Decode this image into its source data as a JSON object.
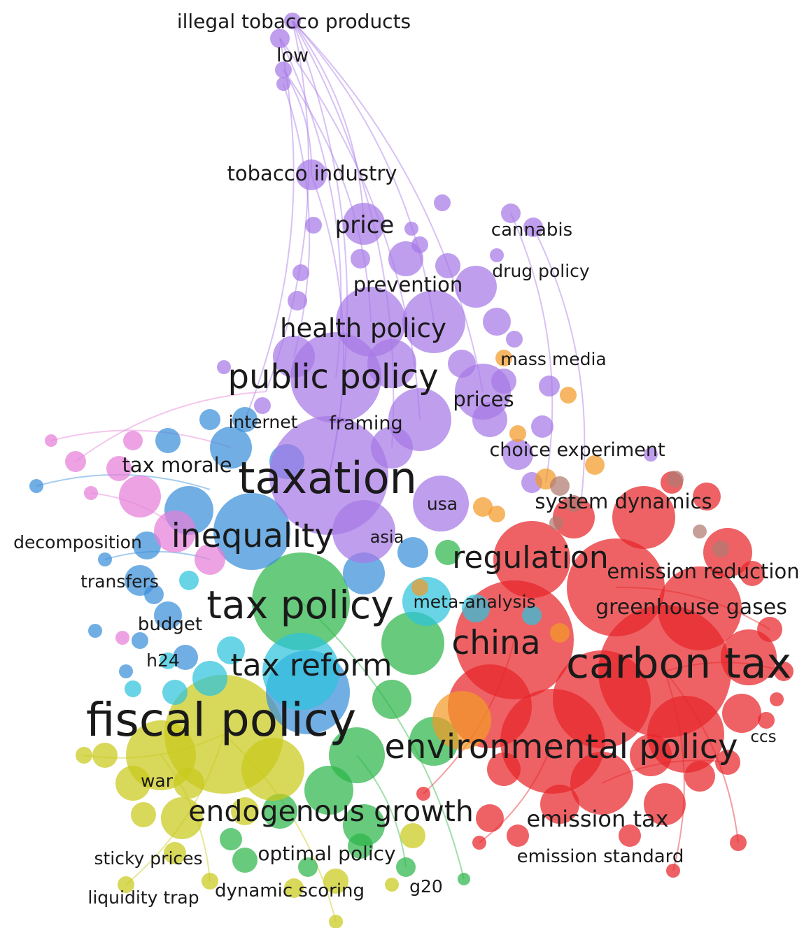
{
  "map": {
    "clusters": {
      "purple": "#a678e6",
      "red": "#e8252a",
      "green": "#2db54a",
      "yellow": "#c9c91c",
      "blue": "#3a8fd9",
      "cyan": "#2ec4dc",
      "pink": "#e680d8",
      "orange": "#f29a28",
      "brown": "#b07a70"
    },
    "labels": [
      {
        "text": "illegal tobacco products",
        "cluster": "purple"
      },
      {
        "text": "low",
        "cluster": "purple"
      },
      {
        "text": "tobacco industry",
        "cluster": "purple"
      },
      {
        "text": "price",
        "cluster": "purple"
      },
      {
        "text": "cannabis",
        "cluster": "purple"
      },
      {
        "text": "drug policy",
        "cluster": "purple"
      },
      {
        "text": "prevention",
        "cluster": "purple"
      },
      {
        "text": "health policy",
        "cluster": "purple"
      },
      {
        "text": "mass media",
        "cluster": "orange"
      },
      {
        "text": "public policy",
        "cluster": "purple"
      },
      {
        "text": "prices",
        "cluster": "purple"
      },
      {
        "text": "internet",
        "cluster": "blue"
      },
      {
        "text": "framing",
        "cluster": "purple"
      },
      {
        "text": "choice experiment",
        "cluster": "orange"
      },
      {
        "text": "tax morale",
        "cluster": "pink"
      },
      {
        "text": "taxation",
        "cluster": "purple"
      },
      {
        "text": "usa",
        "cluster": "purple"
      },
      {
        "text": "system dynamics",
        "cluster": "red"
      },
      {
        "text": "decomposition",
        "cluster": "blue"
      },
      {
        "text": "inequality",
        "cluster": "blue"
      },
      {
        "text": "asia",
        "cluster": "purple"
      },
      {
        "text": "regulation",
        "cluster": "red"
      },
      {
        "text": "emission reduction",
        "cluster": "red"
      },
      {
        "text": "transfers",
        "cluster": "blue"
      },
      {
        "text": "tax policy",
        "cluster": "green"
      },
      {
        "text": "meta-analysis",
        "cluster": "cyan"
      },
      {
        "text": "greenhouse gases",
        "cluster": "red"
      },
      {
        "text": "budget",
        "cluster": "blue"
      },
      {
        "text": "china",
        "cluster": "red"
      },
      {
        "text": "carbon tax",
        "cluster": "red"
      },
      {
        "text": "h24",
        "cluster": "cyan"
      },
      {
        "text": "tax reform",
        "cluster": "cyan"
      },
      {
        "text": "fiscal policy",
        "cluster": "yellow"
      },
      {
        "text": "environmental policy",
        "cluster": "red"
      },
      {
        "text": "ccs",
        "cluster": "red"
      },
      {
        "text": "war",
        "cluster": "yellow"
      },
      {
        "text": "endogenous growth",
        "cluster": "yellow"
      },
      {
        "text": "emission tax",
        "cluster": "red"
      },
      {
        "text": "sticky prices",
        "cluster": "yellow"
      },
      {
        "text": "optimal policy",
        "cluster": "green"
      },
      {
        "text": "emission standard",
        "cluster": "red"
      },
      {
        "text": "g20",
        "cluster": "green"
      },
      {
        "text": "liquidity trap",
        "cluster": "yellow"
      },
      {
        "text": "dynamic scoring",
        "cluster": "yellow"
      }
    ]
  }
}
